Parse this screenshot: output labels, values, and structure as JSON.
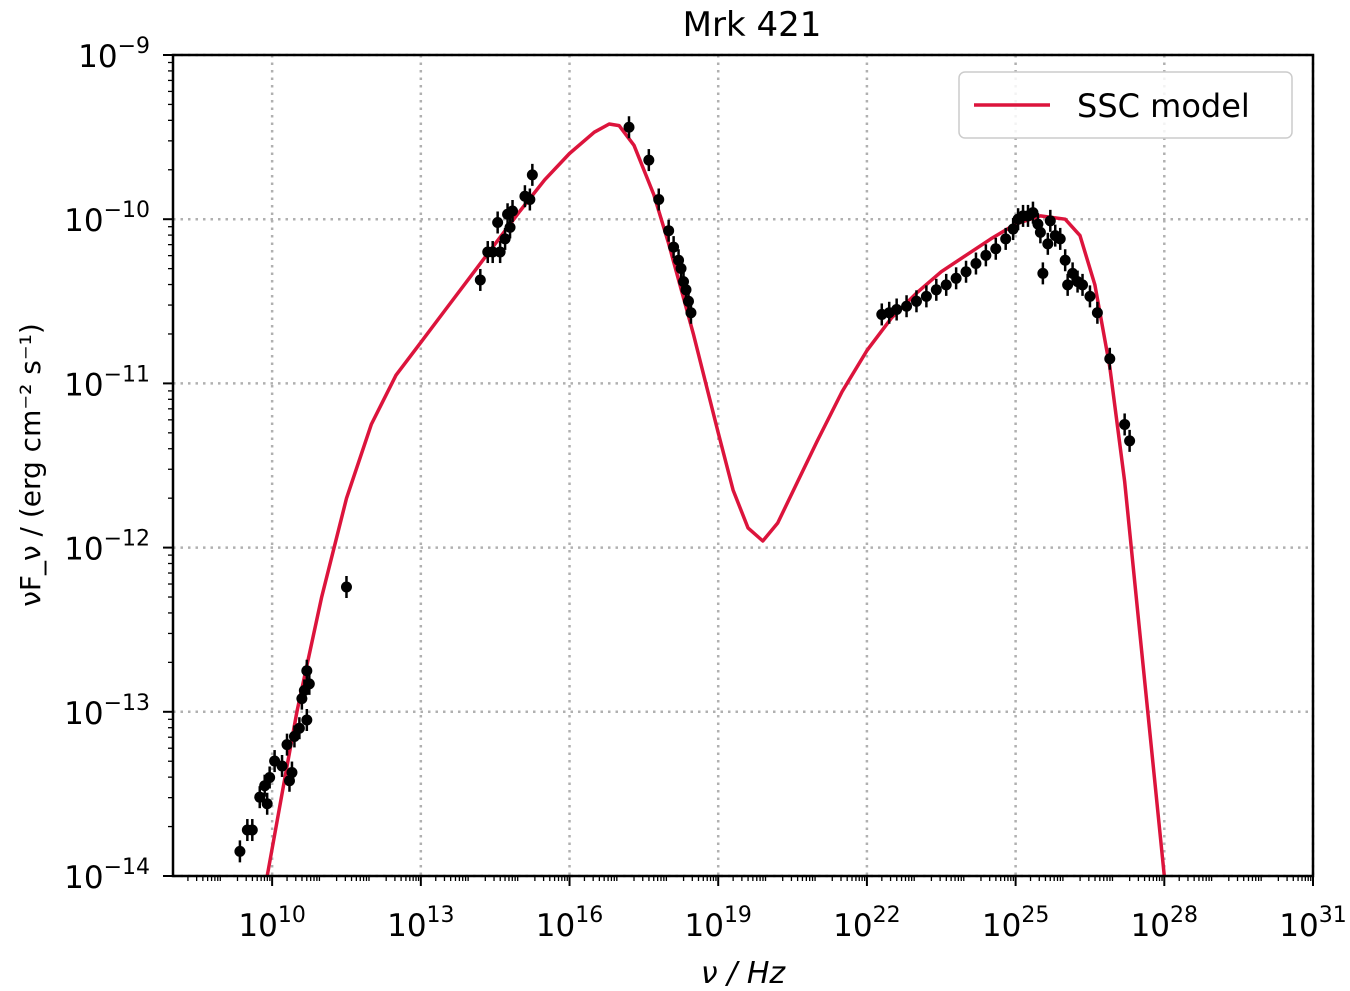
{
  "chart_data": {
    "type": "scatter",
    "title": "Mrk 421",
    "xlabel": "ν / Hz",
    "ylabel": "νF_ν / (erg cm⁻² s⁻¹)",
    "xscale": "log",
    "yscale": "log",
    "xlim": [
      100000000.0,
      1e+31
    ],
    "ylim": [
      1e-14,
      1e-09
    ],
    "grid": true,
    "legend_position": "top-right",
    "x_ticks": [
      {
        "exp": 10,
        "base": "10",
        "sup": "10"
      },
      {
        "exp": 13,
        "base": "10",
        "sup": "13"
      },
      {
        "exp": 16,
        "base": "10",
        "sup": "16"
      },
      {
        "exp": 19,
        "base": "10",
        "sup": "19"
      },
      {
        "exp": 22,
        "base": "10",
        "sup": "22"
      },
      {
        "exp": 25,
        "base": "10",
        "sup": "25"
      },
      {
        "exp": 28,
        "base": "10",
        "sup": "28"
      },
      {
        "exp": 31,
        "base": "10",
        "sup": "31"
      }
    ],
    "y_ticks": [
      {
        "exp": -9,
        "base": "10",
        "sup": "−9"
      },
      {
        "exp": -10,
        "base": "10",
        "sup": "−10"
      },
      {
        "exp": -11,
        "base": "10",
        "sup": "−11"
      },
      {
        "exp": -12,
        "base": "10",
        "sup": "−12"
      },
      {
        "exp": -13,
        "base": "10",
        "sup": "−13"
      },
      {
        "exp": -14,
        "base": "10",
        "sup": "−14"
      }
    ],
    "series": [
      {
        "name": "SSC model",
        "type": "line",
        "color": "#dc143c",
        "log10_points": [
          [
            9.9,
            -14.0
          ],
          [
            10.2,
            -13.5
          ],
          [
            10.5,
            -13.0
          ],
          [
            11.0,
            -12.3
          ],
          [
            11.5,
            -11.7
          ],
          [
            12.0,
            -11.25
          ],
          [
            12.5,
            -10.95
          ],
          [
            13.0,
            -10.75
          ],
          [
            13.5,
            -10.55
          ],
          [
            14.0,
            -10.35
          ],
          [
            14.5,
            -10.15
          ],
          [
            15.0,
            -9.95
          ],
          [
            15.5,
            -9.76
          ],
          [
            16.0,
            -9.6
          ],
          [
            16.5,
            -9.47
          ],
          [
            16.8,
            -9.42
          ],
          [
            17.0,
            -9.43
          ],
          [
            17.3,
            -9.55
          ],
          [
            17.7,
            -9.85
          ],
          [
            18.0,
            -10.15
          ],
          [
            18.5,
            -10.7
          ],
          [
            19.0,
            -11.3
          ],
          [
            19.3,
            -11.65
          ],
          [
            19.6,
            -11.88
          ],
          [
            19.9,
            -11.96
          ],
          [
            20.2,
            -11.85
          ],
          [
            20.6,
            -11.6
          ],
          [
            21.0,
            -11.35
          ],
          [
            21.5,
            -11.05
          ],
          [
            22.0,
            -10.8
          ],
          [
            22.5,
            -10.6
          ],
          [
            23.0,
            -10.45
          ],
          [
            23.5,
            -10.32
          ],
          [
            24.0,
            -10.22
          ],
          [
            24.5,
            -10.12
          ],
          [
            25.0,
            -10.03
          ],
          [
            25.5,
            -9.98
          ],
          [
            26.0,
            -10.0
          ],
          [
            26.3,
            -10.1
          ],
          [
            26.6,
            -10.4
          ],
          [
            26.9,
            -10.9
          ],
          [
            27.2,
            -11.6
          ],
          [
            27.5,
            -12.5
          ],
          [
            27.8,
            -13.4
          ],
          [
            28.0,
            -14.0
          ]
        ]
      },
      {
        "name": "",
        "type": "scatter",
        "color": "#000000",
        "log10_points": [
          [
            9.35,
            -13.85
          ],
          [
            9.5,
            -13.72
          ],
          [
            9.6,
            -13.72
          ],
          [
            9.75,
            -13.52
          ],
          [
            9.85,
            -13.45
          ],
          [
            9.9,
            -13.56
          ],
          [
            9.95,
            -13.4
          ],
          [
            10.05,
            -13.3
          ],
          [
            10.2,
            -13.33
          ],
          [
            10.3,
            -13.2
          ],
          [
            10.35,
            -13.42
          ],
          [
            10.4,
            -13.37
          ],
          [
            10.45,
            -13.15
          ],
          [
            10.55,
            -13.1
          ],
          [
            10.6,
            -12.92
          ],
          [
            10.65,
            -12.87
          ],
          [
            10.7,
            -13.05
          ],
          [
            10.7,
            -12.75
          ],
          [
            10.75,
            -12.83
          ],
          [
            11.5,
            -12.24
          ],
          [
            14.2,
            -10.37
          ],
          [
            14.35,
            -10.2
          ],
          [
            14.45,
            -10.2
          ],
          [
            14.55,
            -10.02
          ],
          [
            14.6,
            -10.2
          ],
          [
            14.7,
            -10.12
          ],
          [
            14.75,
            -9.97
          ],
          [
            14.8,
            -10.05
          ],
          [
            14.85,
            -9.95
          ],
          [
            15.1,
            -9.86
          ],
          [
            15.2,
            -9.88
          ],
          [
            15.25,
            -9.73
          ],
          [
            17.2,
            -9.44
          ],
          [
            17.6,
            -9.64
          ],
          [
            17.8,
            -9.88
          ],
          [
            18.0,
            -10.07
          ],
          [
            18.1,
            -10.17
          ],
          [
            18.2,
            -10.25
          ],
          [
            18.25,
            -10.3
          ],
          [
            18.3,
            -10.38
          ],
          [
            18.35,
            -10.43
          ],
          [
            18.4,
            -10.5
          ],
          [
            18.45,
            -10.57
          ],
          [
            22.3,
            -10.58
          ],
          [
            22.45,
            -10.57
          ],
          [
            22.6,
            -10.55
          ],
          [
            22.8,
            -10.53
          ],
          [
            23.0,
            -10.5
          ],
          [
            23.2,
            -10.47
          ],
          [
            23.4,
            -10.43
          ],
          [
            23.6,
            -10.4
          ],
          [
            23.8,
            -10.36
          ],
          [
            24.0,
            -10.32
          ],
          [
            24.2,
            -10.27
          ],
          [
            24.4,
            -10.22
          ],
          [
            24.6,
            -10.18
          ],
          [
            24.8,
            -10.12
          ],
          [
            24.95,
            -10.06
          ],
          [
            25.05,
            -10.0
          ],
          [
            25.15,
            -9.98
          ],
          [
            25.25,
            -9.98
          ],
          [
            25.35,
            -9.96
          ],
          [
            25.45,
            -10.03
          ],
          [
            25.5,
            -10.08
          ],
          [
            25.55,
            -10.33
          ],
          [
            25.65,
            -10.15
          ],
          [
            25.7,
            -10.01
          ],
          [
            25.8,
            -10.1
          ],
          [
            25.9,
            -10.12
          ],
          [
            26.0,
            -10.25
          ],
          [
            26.05,
            -10.4
          ],
          [
            26.15,
            -10.33
          ],
          [
            26.25,
            -10.38
          ],
          [
            26.35,
            -10.4
          ],
          [
            26.5,
            -10.47
          ],
          [
            26.65,
            -10.57
          ],
          [
            26.9,
            -10.85
          ],
          [
            27.2,
            -11.25
          ],
          [
            27.3,
            -11.35
          ]
        ]
      }
    ]
  }
}
